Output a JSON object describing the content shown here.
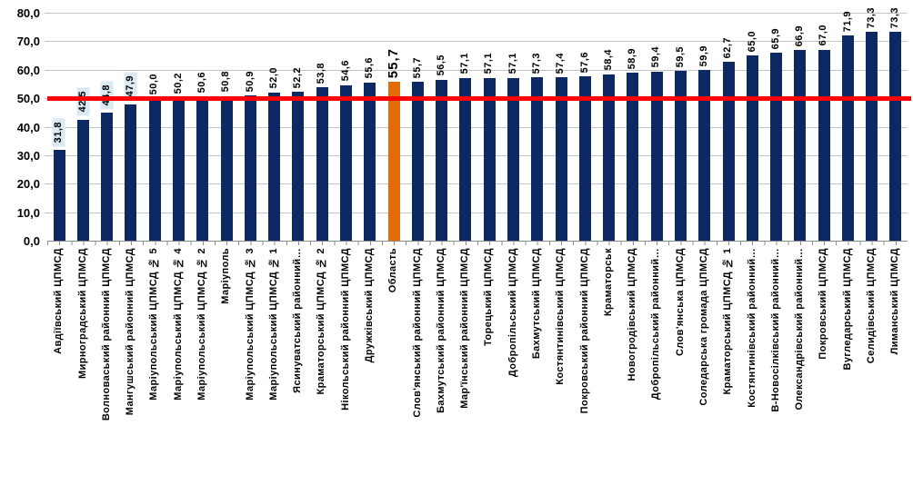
{
  "chart_data": {
    "type": "bar",
    "title": "",
    "xlabel": "",
    "ylabel": "",
    "ylim": [
      0,
      80
    ],
    "grid": "horizontal",
    "legend": "none",
    "colors": {
      "bar": "#0d2963",
      "accent_bar": "#e36c09",
      "reference_line": "#ff0000",
      "value_highlight_bg": "#d9eaf3",
      "gridline": "#c3c3c3",
      "axis_line": "#8c8c8c",
      "text": "#000000"
    },
    "yticks": [
      {
        "value": 0,
        "label": "0,0"
      },
      {
        "value": 10,
        "label": "10,0"
      },
      {
        "value": 20,
        "label": "20,0"
      },
      {
        "value": 30,
        "label": "30,0"
      },
      {
        "value": 40,
        "label": "40,0"
      },
      {
        "value": 50,
        "label": "50,0"
      },
      {
        "value": 60,
        "label": "60,0"
      },
      {
        "value": 70,
        "label": "70,0"
      },
      {
        "value": 80,
        "label": "80,0"
      }
    ],
    "reference_line": {
      "value": 50.0
    },
    "bars": [
      {
        "category": "Авдіївський ЦПМСД",
        "value": 31.8,
        "display": "31,8",
        "highlight": true
      },
      {
        "category": "Мирноградський ЦПМСД",
        "value": 42.5,
        "display": "42,5",
        "highlight": true
      },
      {
        "category": "Волноваський районний ЦПМСД",
        "value": 44.8,
        "display": "44,8",
        "highlight": true
      },
      {
        "category": "Мангушський районний ЦПМСД",
        "value": 47.9,
        "display": "47,9",
        "highlight": true
      },
      {
        "category": "Маріупольський ЦПМСД № 5",
        "value": 50.0,
        "display": "50,0"
      },
      {
        "category": "Маріупольський ЦПМСД № 4",
        "value": 50.2,
        "display": "50,2"
      },
      {
        "category": "Маріупольський ЦПМСД № 2",
        "value": 50.6,
        "display": "50,6"
      },
      {
        "category": "Маріуполь",
        "value": 50.8,
        "display": "50,8"
      },
      {
        "category": "Маріупольський ЦПМСД № 3",
        "value": 50.9,
        "display": "50,9"
      },
      {
        "category": "Маріупольський ЦПМСД № 1",
        "value": 52.0,
        "display": "52,0"
      },
      {
        "category": "Ясинуватський районний…",
        "value": 52.2,
        "display": "52,2"
      },
      {
        "category": "Краматорський ЦПМСД № 2",
        "value": 53.8,
        "display": "53,8"
      },
      {
        "category": "Нікольський районний ЦПМСД",
        "value": 54.6,
        "display": "54,6"
      },
      {
        "category": "Дружківський ЦПМСД",
        "value": 55.6,
        "display": "55,6"
      },
      {
        "category": "Область",
        "value": 55.7,
        "display": "55,7",
        "accent": true,
        "big_label": true
      },
      {
        "category": "Слов'янський районний ЦПМСД",
        "value": 55.7,
        "display": "55,7"
      },
      {
        "category": "Бахмутський районний ЦПМСД",
        "value": 56.5,
        "display": "56,5"
      },
      {
        "category": "Мар'їнський районний ЦПМСД",
        "value": 57.1,
        "display": "57,1"
      },
      {
        "category": "Торецький ЦПМСД",
        "value": 57.1,
        "display": "57,1"
      },
      {
        "category": "Добропільський ЦПМСД",
        "value": 57.1,
        "display": "57,1"
      },
      {
        "category": "Бахмутський ЦПМСД",
        "value": 57.3,
        "display": "57,3"
      },
      {
        "category": "Костянтинівський ЦПМСД",
        "value": 57.4,
        "display": "57,4"
      },
      {
        "category": "Покровський районний ЦПМСД",
        "value": 57.6,
        "display": "57,6"
      },
      {
        "category": "Краматорськ",
        "value": 58.4,
        "display": "58,4"
      },
      {
        "category": "Новогродівський ЦПМСД",
        "value": 58.9,
        "display": "58,9"
      },
      {
        "category": "Добропільський районний…",
        "value": 59.4,
        "display": "59,4"
      },
      {
        "category": "Слов'янська ЦПМСД",
        "value": 59.5,
        "display": "59,5"
      },
      {
        "category": "Соледарська громада ЦПМСД",
        "value": 59.9,
        "display": "59,9"
      },
      {
        "category": "Краматорський ЦПМСД № 1",
        "value": 62.7,
        "display": "62,7"
      },
      {
        "category": "Костянтинівський районний…",
        "value": 65.0,
        "display": "65,0"
      },
      {
        "category": "В-Новосілківський районний…",
        "value": 65.9,
        "display": "65,9"
      },
      {
        "category": "Олександрівський районний…",
        "value": 66.9,
        "display": "66,9"
      },
      {
        "category": "Покровський ЦПМСД",
        "value": 67.0,
        "display": "67,0"
      },
      {
        "category": "Вугледарський ЦПМСД",
        "value": 71.9,
        "display": "71,9"
      },
      {
        "category": "Селидівський ЦПМСД",
        "value": 73.3,
        "display": "73,3"
      },
      {
        "category": "Лиманський ЦПМСД",
        "value": 73.3,
        "display": "73,3"
      }
    ]
  }
}
